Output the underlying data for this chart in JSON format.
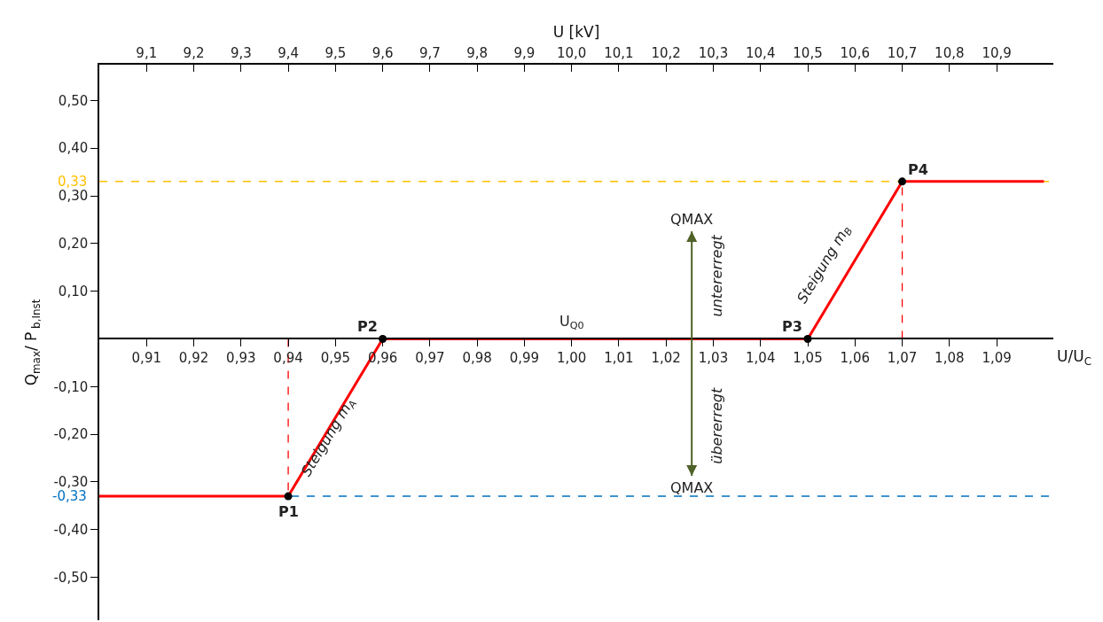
{
  "chart_data": {
    "type": "line",
    "xlabel": "U/U$_{C}$",
    "ylabel": "Q$_{max}$/ P$_{ b,Inst}$",
    "x2label": "U [kV]",
    "xlim": [
      0.9,
      1.102
    ],
    "ylim": [
      -0.59,
      0.575
    ],
    "x2lim": [
      9.0,
      11.02
    ],
    "xticks": [
      {
        "value": 0.91,
        "label": "0,91"
      },
      {
        "value": 0.92,
        "label": "0,92"
      },
      {
        "value": 0.93,
        "label": "0,93"
      },
      {
        "value": 0.94,
        "label": "0,94"
      },
      {
        "value": 0.95,
        "label": "0,95"
      },
      {
        "value": 0.96,
        "label": "0,96"
      },
      {
        "value": 0.97,
        "label": "0,97"
      },
      {
        "value": 0.98,
        "label": "0,98"
      },
      {
        "value": 0.99,
        "label": "0,99"
      },
      {
        "value": 1.0,
        "label": "1,00"
      },
      {
        "value": 1.01,
        "label": "1,01"
      },
      {
        "value": 1.02,
        "label": "1,02"
      },
      {
        "value": 1.03,
        "label": "1,03"
      },
      {
        "value": 1.04,
        "label": "1,04"
      },
      {
        "value": 1.05,
        "label": "1,05"
      },
      {
        "value": 1.06,
        "label": "1,06"
      },
      {
        "value": 1.07,
        "label": "1,07"
      },
      {
        "value": 1.08,
        "label": "1,08"
      },
      {
        "value": 1.09,
        "label": "1,09"
      }
    ],
    "x2ticks": [
      {
        "value": 9.1,
        "label": "9,1"
      },
      {
        "value": 9.2,
        "label": "9,2"
      },
      {
        "value": 9.3,
        "label": "9,3"
      },
      {
        "value": 9.4,
        "label": "9,4"
      },
      {
        "value": 9.5,
        "label": "9,5"
      },
      {
        "value": 9.6,
        "label": "9,6"
      },
      {
        "value": 9.7,
        "label": "9,7"
      },
      {
        "value": 9.8,
        "label": "9,8"
      },
      {
        "value": 9.9,
        "label": "9,9"
      },
      {
        "value": 10.0,
        "label": "10,0"
      },
      {
        "value": 10.1,
        "label": "10,1"
      },
      {
        "value": 10.2,
        "label": "10,2"
      },
      {
        "value": 10.3,
        "label": "10,3"
      },
      {
        "value": 10.4,
        "label": "10,4"
      },
      {
        "value": 10.5,
        "label": "10,5"
      },
      {
        "value": 10.6,
        "label": "10,6"
      },
      {
        "value": 10.7,
        "label": "10,7"
      },
      {
        "value": 10.8,
        "label": "10,8"
      },
      {
        "value": 10.9,
        "label": "10,9"
      }
    ],
    "yticks": [
      {
        "value": 0.5,
        "label": "0,50"
      },
      {
        "value": 0.4,
        "label": "0,40"
      },
      {
        "value": 0.3,
        "label": "0,30"
      },
      {
        "value": 0.2,
        "label": "0,20"
      },
      {
        "value": 0.1,
        "label": "0,10"
      },
      {
        "value": -0.1,
        "label": "-0,10"
      },
      {
        "value": -0.2,
        "label": "-0,20"
      },
      {
        "value": -0.3,
        "label": "-0,30"
      },
      {
        "value": -0.4,
        "label": "-0,40"
      },
      {
        "value": -0.5,
        "label": "-0,50"
      }
    ],
    "series": [
      {
        "color": "#ff0000",
        "line_style": "solid",
        "marker": "none",
        "x": [
          0.9,
          0.94,
          0.96,
          1.05,
          1.07,
          1.1
        ],
        "values": [
          -0.33,
          -0.33,
          0,
          0,
          0.33,
          0.33
        ]
      },
      {
        "type": "line",
        "color": "#ff0000",
        "line_style": "dashed",
        "marker": "none",
        "x": [
          0.94,
          0.94
        ],
        "values": [
          0,
          -0.33
        ]
      },
      {
        "type": "line",
        "color": "#ff0000",
        "line_style": "dashed",
        "marker": "none",
        "x": [
          1.07,
          1.07
        ],
        "values": [
          0,
          0.33
        ]
      },
      {
        "type": "scatter",
        "color": "#000000",
        "marker": "circle",
        "x": [
          0.94,
          0.96,
          1.05,
          1.07
        ],
        "values": [
          -0.33,
          0,
          0,
          0.33
        ]
      }
    ],
    "ref_lines": [
      {
        "axis": "y",
        "value": 0.33,
        "label": "0,33",
        "color": "#ffc000",
        "line_style": "dashed"
      },
      {
        "axis": "y",
        "value": -0.33,
        "label": "-0,33",
        "color": "#0070c0",
        "line_style": "dashed"
      }
    ],
    "annotations": [
      {
        "text": "P1",
        "x": 0.94,
        "y": -0.33
      },
      {
        "text": "P2",
        "x": 0.96,
        "y": 0
      },
      {
        "text": "P3",
        "x": 1.05,
        "y": 0
      },
      {
        "text": "P4",
        "x": 1.07,
        "y": 0.33
      },
      {
        "text": "U$_{Q0}$",
        "x": 1.0,
        "y": 0
      },
      "QMAX",
      "QMAX",
      "untererregt",
      "übererregt",
      "Steigung m$_{A}$",
      "Steigung m$_{B}$"
    ],
    "grid": false
  }
}
